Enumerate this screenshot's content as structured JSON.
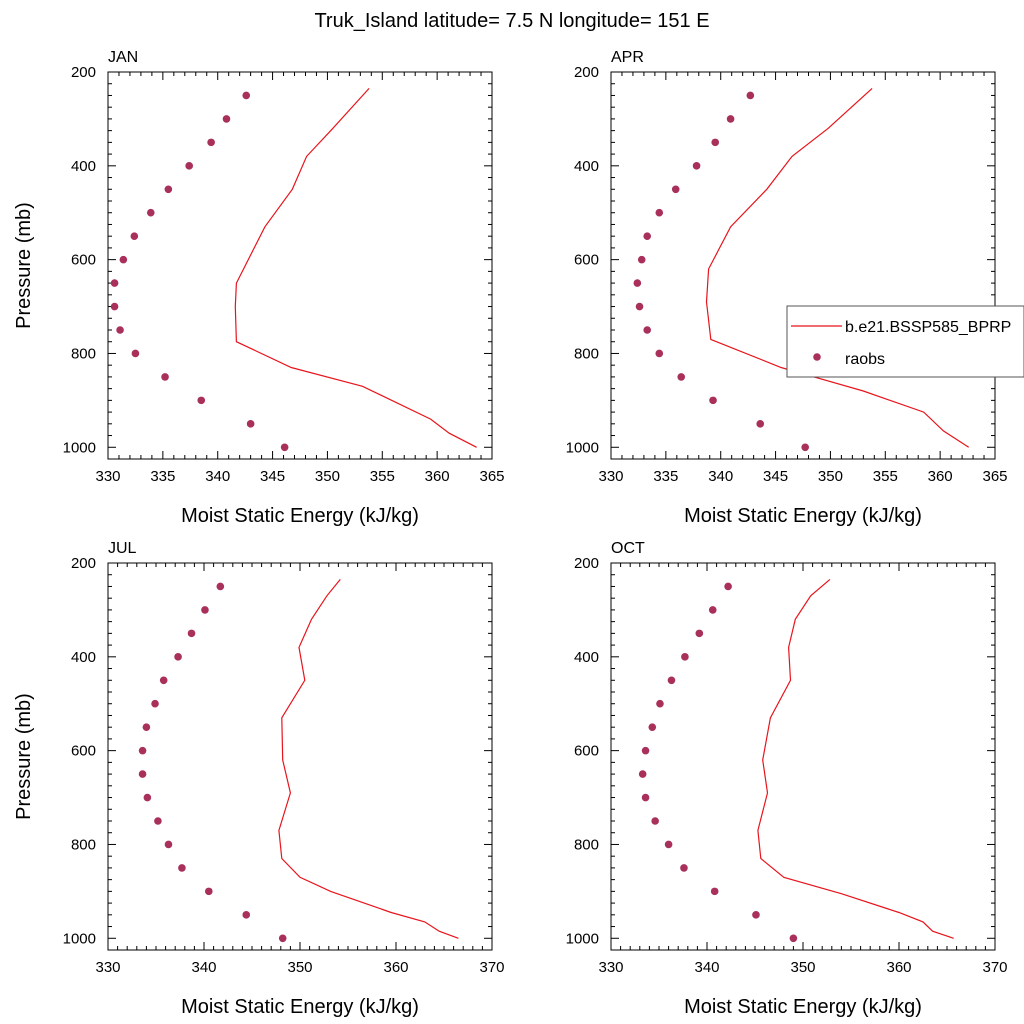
{
  "title": "Truk_Island  latitude= 7.5 N longitude= 151 E",
  "colors": {
    "model": "#e8141c",
    "raobs": "#a8305a",
    "axis": "#000000"
  },
  "legend": {
    "placement": "right-middle of APR panel",
    "entries": [
      {
        "label": "b.e21.BSSP585_BPRP",
        "style": "line"
      },
      {
        "label": "raobs",
        "style": "marker"
      }
    ]
  },
  "chart_data": [
    {
      "type": "line",
      "panel_title": "JAN",
      "xlabel": "Moist Static Energy (kJ/kg)",
      "ylabel": "Pressure (mb)",
      "xlim": [
        330,
        365
      ],
      "ylim": [
        1025,
        200
      ],
      "xticks": [
        330,
        335,
        340,
        345,
        350,
        355,
        360,
        365
      ],
      "yticks": [
        200,
        400,
        600,
        800,
        1000
      ],
      "series": [
        {
          "name": "b.e21.BSSP585_BPRP",
          "kind": "line",
          "x": [
            363.6,
            361.1,
            359.4,
            353.2,
            346.7,
            341.7,
            341.6,
            341.7,
            344.3,
            346.8,
            348.1,
            350.5,
            353.8
          ],
          "y": [
            1000,
            970,
            940,
            870,
            830,
            775,
            700,
            650,
            530,
            450,
            380,
            320,
            235
          ]
        },
        {
          "name": "raobs",
          "kind": "scatter",
          "x": [
            346.1,
            343.0,
            338.5,
            335.2,
            332.5,
            331.1,
            330.6,
            330.6,
            331.4,
            332.4,
            333.9,
            335.5,
            337.4,
            339.4,
            340.8,
            342.6
          ],
          "y": [
            1000,
            950,
            900,
            850,
            800,
            750,
            700,
            650,
            600,
            550,
            500,
            450,
            400,
            350,
            300,
            250
          ]
        }
      ]
    },
    {
      "type": "line",
      "panel_title": "APR",
      "xlabel": "Moist Static Energy (kJ/kg)",
      "ylabel": "",
      "xlim": [
        330,
        365
      ],
      "ylim": [
        1025,
        200
      ],
      "xticks": [
        330,
        335,
        340,
        345,
        350,
        355,
        360,
        365
      ],
      "yticks": [
        200,
        400,
        600,
        800,
        1000
      ],
      "series": [
        {
          "name": "b.e21.BSSP585_BPRP",
          "kind": "line",
          "x": [
            362.6,
            360.3,
            358.5,
            353.0,
            345.5,
            339.1,
            338.7,
            338.9,
            340.9,
            344.2,
            346.5,
            349.8,
            353.8
          ],
          "y": [
            1000,
            965,
            925,
            880,
            830,
            770,
            690,
            620,
            530,
            450,
            380,
            320,
            235
          ]
        },
        {
          "name": "raobs",
          "kind": "scatter",
          "x": [
            347.7,
            343.6,
            339.3,
            336.4,
            334.4,
            333.3,
            332.6,
            332.4,
            332.8,
            333.3,
            334.4,
            335.9,
            337.8,
            339.5,
            340.9,
            342.7
          ],
          "y": [
            1000,
            950,
            900,
            850,
            800,
            750,
            700,
            650,
            600,
            550,
            500,
            450,
            400,
            350,
            300,
            250
          ]
        }
      ]
    },
    {
      "type": "line",
      "panel_title": "JUL",
      "xlabel": "Moist Static Energy (kJ/kg)",
      "ylabel": "Pressure (mb)",
      "xlim": [
        330,
        370
      ],
      "ylim": [
        1025,
        200
      ],
      "xticks": [
        330,
        340,
        350,
        360,
        370
      ],
      "yticks": [
        200,
        400,
        600,
        800,
        1000
      ],
      "series": [
        {
          "name": "b.e21.BSSP585_BPRP",
          "kind": "line",
          "x": [
            366.5,
            364.5,
            363.0,
            359.5,
            353.2,
            350.0,
            348.1,
            347.8,
            349.0,
            348.2,
            348.1,
            350.5,
            349.9,
            351.2,
            352.8,
            354.2
          ],
          "y": [
            1000,
            985,
            965,
            945,
            900,
            870,
            830,
            770,
            690,
            620,
            530,
            450,
            380,
            320,
            270,
            235
          ]
        },
        {
          "name": "raobs",
          "kind": "scatter",
          "x": [
            348.2,
            344.4,
            340.5,
            337.7,
            336.3,
            335.2,
            334.1,
            333.6,
            333.6,
            334.0,
            334.9,
            335.8,
            337.3,
            338.7,
            340.1,
            341.7
          ],
          "y": [
            1000,
            950,
            900,
            850,
            800,
            750,
            700,
            650,
            600,
            550,
            500,
            450,
            400,
            350,
            300,
            250
          ]
        }
      ]
    },
    {
      "type": "line",
      "panel_title": "OCT",
      "xlabel": "Moist Static Energy (kJ/kg)",
      "ylabel": "",
      "xlim": [
        330,
        370
      ],
      "ylim": [
        1025,
        200
      ],
      "xticks": [
        330,
        340,
        350,
        360,
        370
      ],
      "yticks": [
        200,
        400,
        600,
        800,
        1000
      ],
      "series": [
        {
          "name": "b.e21.BSSP585_BPRP",
          "kind": "line",
          "x": [
            365.7,
            363.5,
            362.5,
            360.0,
            354.0,
            348.0,
            345.6,
            345.3,
            346.3,
            345.8,
            346.6,
            348.7,
            348.5,
            349.2,
            350.8,
            352.8
          ],
          "y": [
            1000,
            985,
            965,
            945,
            905,
            870,
            830,
            770,
            690,
            620,
            530,
            450,
            380,
            320,
            270,
            235
          ]
        },
        {
          "name": "raobs",
          "kind": "scatter",
          "x": [
            349.0,
            345.1,
            340.8,
            337.6,
            336.0,
            334.6,
            333.6,
            333.3,
            333.6,
            334.3,
            335.1,
            336.3,
            337.7,
            339.2,
            340.6,
            342.2
          ],
          "y": [
            1000,
            950,
            900,
            850,
            800,
            750,
            700,
            650,
            600,
            550,
            500,
            450,
            400,
            350,
            300,
            250
          ]
        }
      ]
    }
  ]
}
